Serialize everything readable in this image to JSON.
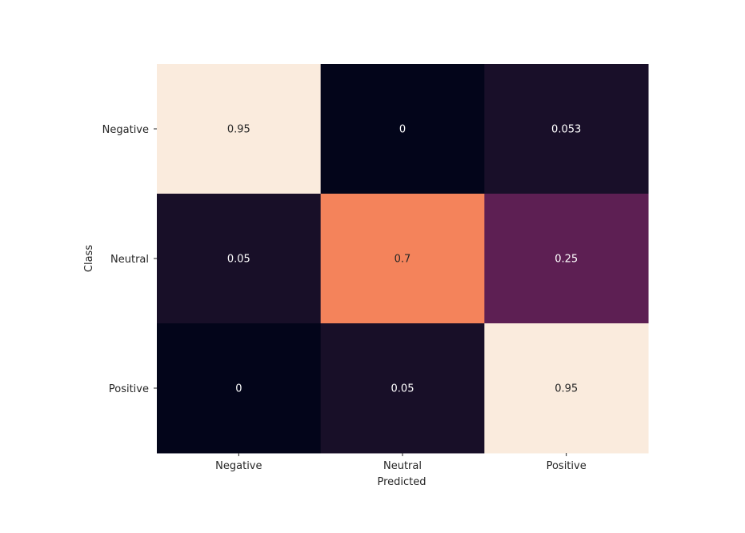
{
  "chart_data": {
    "type": "heatmap",
    "title": "",
    "xlabel": "Predicted",
    "ylabel": "Class",
    "x_categories": [
      "Negative",
      "Neutral",
      "Positive"
    ],
    "y_categories": [
      "Negative",
      "Neutral",
      "Positive"
    ],
    "values": [
      [
        0.95,
        0,
        0.053
      ],
      [
        0.05,
        0.7,
        0.25
      ],
      [
        0,
        0.05,
        0.95
      ]
    ],
    "cell_labels": [
      [
        "0.95",
        "0",
        "0.053"
      ],
      [
        "0.05",
        "0.7",
        "0.25"
      ],
      [
        "0",
        "0.05",
        "0.95"
      ]
    ],
    "colormap": "rocket",
    "color_range": [
      0,
      0.95
    ],
    "colorbar": false,
    "grid": false
  }
}
